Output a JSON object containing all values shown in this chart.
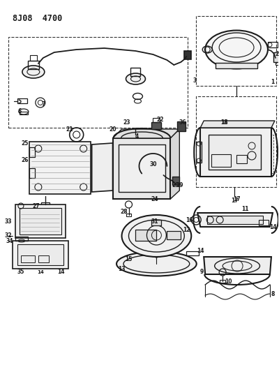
{
  "title": "8J08 4700",
  "bg_color": "#ffffff",
  "lc": "#1a1a1a",
  "figsize": [
    4.0,
    5.33
  ],
  "dpi": 100
}
